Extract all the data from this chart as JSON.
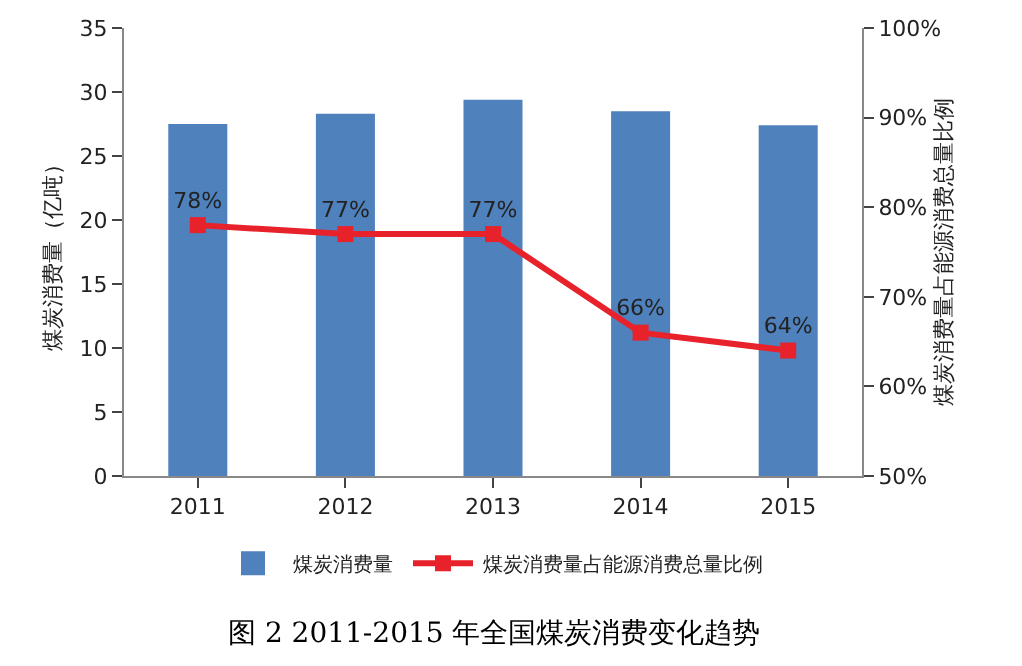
{
  "chart_data": {
    "type": "bar",
    "title": "图 2 2011-2015 年全国煤炭消费变化趋势",
    "categories": [
      "2011",
      "2012",
      "2013",
      "2014",
      "2015"
    ],
    "ylabel": "煤炭消费量（亿吨）",
    "y2label": "煤炭消费量占能源消费总量比例",
    "series": [
      {
        "name": "煤炭消费量",
        "color": "#4f81bd",
        "values": [
          27.5,
          28.3,
          29.4,
          28.5,
          27.4
        ]
      },
      {
        "name": "煤炭消费量占能源消费总量比例",
        "type": "line",
        "axis": "y2",
        "color": "#e8222b",
        "marker": "square",
        "values": [
          78,
          77,
          77,
          66,
          64
        ],
        "value_labels": [
          "78%",
          "77%",
          "77%",
          "66%",
          "64%"
        ]
      }
    ],
    "ylim": [
      0,
      35
    ],
    "yticks": [
      0,
      5,
      10,
      15,
      20,
      25,
      30,
      35
    ],
    "y2lim": [
      50,
      100
    ],
    "y2ticks": [
      {
        "value": 50,
        "label": "50%"
      },
      {
        "value": 60,
        "label": "60%"
      },
      {
        "value": 70,
        "label": "70%"
      },
      {
        "value": 80,
        "label": "80%"
      },
      {
        "value": 90,
        "label": "90%"
      },
      {
        "value": 100,
        "label": "100%"
      }
    ],
    "grid": false,
    "legend": "bottom"
  }
}
